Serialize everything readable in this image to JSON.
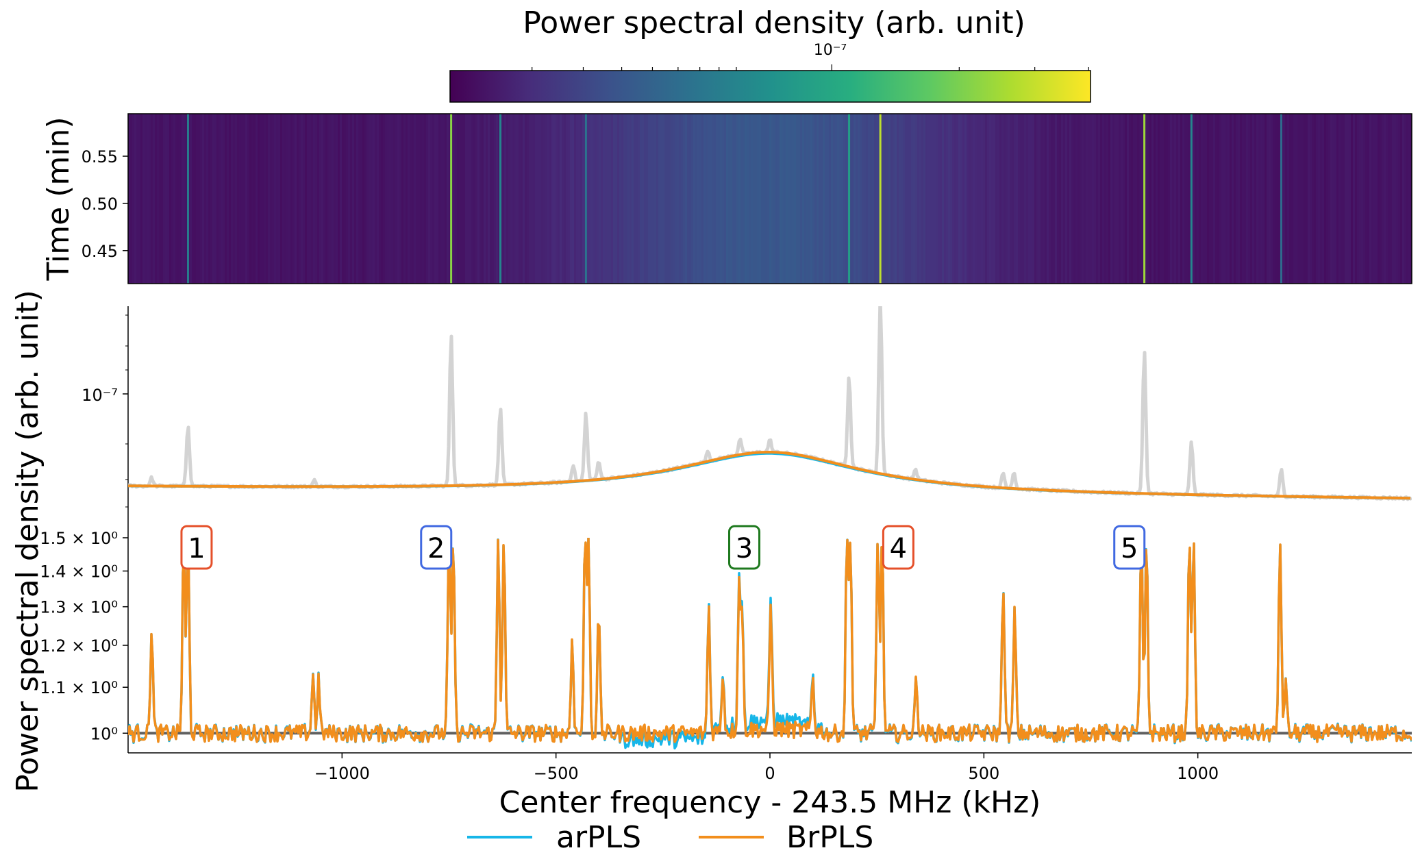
{
  "chart_data": [
    {
      "type": "heatmap",
      "colorbar": {
        "title": "Power spectral density (arb. unit)",
        "tick_label": "10⁻⁷",
        "colormap": "viridis",
        "stops": [
          "#440154",
          "#472d7b",
          "#3b528b",
          "#2c728e",
          "#21918c",
          "#28ae80",
          "#5ec962",
          "#addc30",
          "#fde725"
        ]
      },
      "ylabel": "Time (min)",
      "ylim": [
        0.415,
        0.595
      ],
      "yticks": [
        0.45,
        0.5,
        0.55
      ],
      "ytick_labels": [
        "0.45",
        "0.50",
        "0.55"
      ],
      "xlim": [
        -1500,
        1500
      ],
      "base_level": 0.05,
      "lines": [
        {
          "x": -1360,
          "level": 0.42
        },
        {
          "x": -745,
          "level": 0.82
        },
        {
          "x": -630,
          "level": 0.45
        },
        {
          "x": -430,
          "level": 0.38
        },
        {
          "x": 185,
          "level": 0.55
        },
        {
          "x": 258,
          "level": 0.9
        },
        {
          "x": 875,
          "level": 0.85
        },
        {
          "x": 985,
          "level": 0.45
        },
        {
          "x": 1195,
          "level": 0.35
        }
      ]
    },
    {
      "type": "line",
      "ylabel": "Power spectral density (arb. unit)",
      "yscale": "log",
      "ytick_label": "10⁻⁷",
      "xlim": [
        -1500,
        1500
      ],
      "raw_spectrum": {
        "color": "#d3d3d3",
        "baseline": 0.09,
        "hump": {
          "center": 0,
          "amplitude": 0.2,
          "width": 260
        },
        "peaks": [
          {
            "x": -1445,
            "height": 0.04
          },
          {
            "x": -1360,
            "height": 0.3
          },
          {
            "x": -1065,
            "height": 0.03
          },
          {
            "x": -745,
            "height": 0.74
          },
          {
            "x": -630,
            "height": 0.38
          },
          {
            "x": -430,
            "height": 0.33
          },
          {
            "x": -460,
            "height": 0.08
          },
          {
            "x": -400,
            "height": 0.09
          },
          {
            "x": -145,
            "height": 0.05
          },
          {
            "x": -70,
            "height": 0.08
          },
          {
            "x": 0,
            "height": 0.06
          },
          {
            "x": 185,
            "height": 0.45
          },
          {
            "x": 258,
            "height": 0.86
          },
          {
            "x": 340,
            "height": 0.05
          },
          {
            "x": 545,
            "height": 0.07
          },
          {
            "x": 570,
            "height": 0.08
          },
          {
            "x": 875,
            "height": 0.7
          },
          {
            "x": 985,
            "height": 0.26
          },
          {
            "x": 1195,
            "height": 0.13
          }
        ]
      },
      "series": [
        {
          "name": "arPLS",
          "color": "#17b6e8",
          "hump_scale": 0.97
        },
        {
          "name": "BrPLS",
          "color": "#f28e1c",
          "hump_scale": 1.0
        }
      ]
    },
    {
      "type": "line",
      "xlabel": "Center frequency - 243.5 MHz (kHz)",
      "yscale": "log",
      "ylim": [
        0.96,
        1.5
      ],
      "yticks": [
        1.0,
        1.1,
        1.2,
        1.3,
        1.4,
        1.5
      ],
      "ytick_labels": [
        "10⁰",
        "1.1 × 10⁰",
        "1.2 × 10⁰",
        "1.3 × 10⁰",
        "1.4 × 10⁰",
        "1.5 × 10⁰"
      ],
      "xlim": [
        -1500,
        1500
      ],
      "xticks": [
        -1000,
        -500,
        0,
        500,
        1000
      ],
      "xtick_labels": [
        "−1000",
        "−500",
        "0",
        "500",
        "1000"
      ],
      "reference_line": {
        "y": 1.0,
        "color": "#606060"
      },
      "noise_amplitude": 0.018,
      "peaks": [
        {
          "x": -1445,
          "y": 1.245
        },
        {
          "x": -1370,
          "y": 1.5
        },
        {
          "x": -1360,
          "y": 1.5
        },
        {
          "x": -1068,
          "y": 1.13
        },
        {
          "x": -1055,
          "y": 1.12
        },
        {
          "x": -750,
          "y": 1.5
        },
        {
          "x": -740,
          "y": 1.5
        },
        {
          "x": -635,
          "y": 1.5
        },
        {
          "x": -622,
          "y": 1.5
        },
        {
          "x": -462,
          "y": 1.22
        },
        {
          "x": -432,
          "y": 1.5
        },
        {
          "x": -424,
          "y": 1.5
        },
        {
          "x": -400,
          "y": 1.29
        },
        {
          "x": -143,
          "y": 1.3
        },
        {
          "x": -110,
          "y": 1.13
        },
        {
          "x": -72,
          "y": 1.36
        },
        {
          "x": -65,
          "y": 1.27
        },
        {
          "x": 2,
          "y": 1.3
        },
        {
          "x": 100,
          "y": 1.12
        },
        {
          "x": 180,
          "y": 1.5
        },
        {
          "x": 188,
          "y": 1.5
        },
        {
          "x": 252,
          "y": 1.5
        },
        {
          "x": 262,
          "y": 1.5
        },
        {
          "x": 342,
          "y": 1.13
        },
        {
          "x": 545,
          "y": 1.37
        },
        {
          "x": 572,
          "y": 1.29
        },
        {
          "x": 868,
          "y": 1.5
        },
        {
          "x": 880,
          "y": 1.5
        },
        {
          "x": 980,
          "y": 1.5
        },
        {
          "x": 990,
          "y": 1.5
        },
        {
          "x": 1192,
          "y": 1.5
        },
        {
          "x": 1205,
          "y": 1.12
        }
      ],
      "annotations": [
        {
          "label": "1",
          "x": -1340,
          "color": "#e5502a"
        },
        {
          "label": "2",
          "x": -780,
          "color": "#4169e1"
        },
        {
          "label": "3",
          "x": -60,
          "color": "#1f7a1f"
        },
        {
          "label": "4",
          "x": 300,
          "color": "#e5502a"
        },
        {
          "label": "5",
          "x": 840,
          "color": "#4169e1"
        }
      ],
      "series": [
        {
          "name": "arPLS",
          "color": "#17b6e8"
        },
        {
          "name": "BrPLS",
          "color": "#f28e1c"
        }
      ],
      "legend": {
        "placement": "bottom-center",
        "entries": [
          "arPLS",
          "BrPLS"
        ]
      }
    }
  ]
}
